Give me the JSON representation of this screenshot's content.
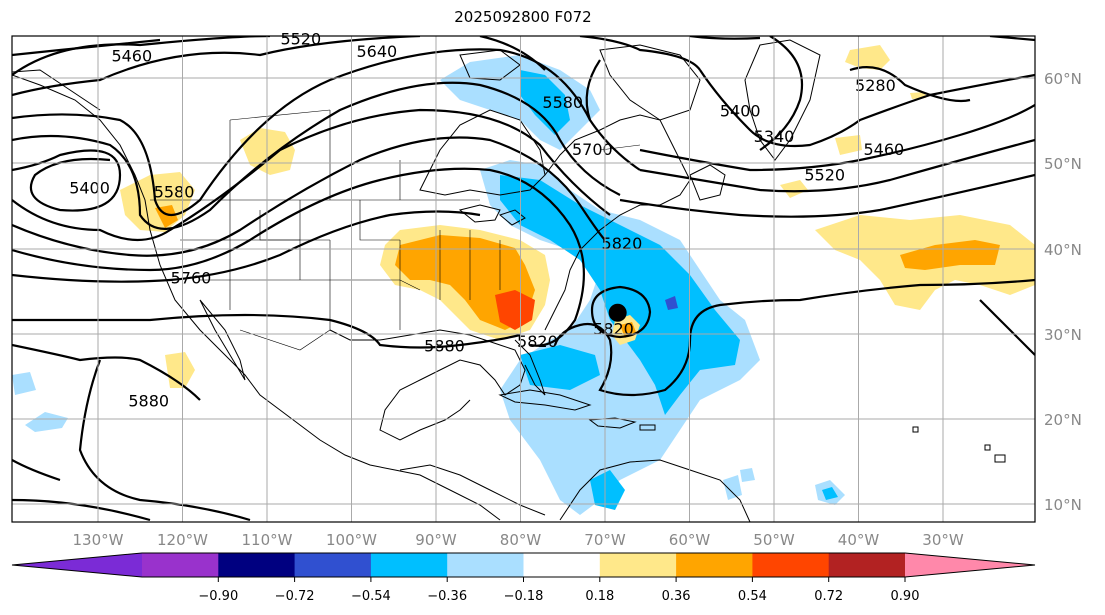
{
  "title": "2025092800 F072",
  "map": {
    "lat_ticks": [
      {
        "value": 60,
        "label": "60°N"
      },
      {
        "value": 50,
        "label": "50°N"
      },
      {
        "value": 40,
        "label": "40°N"
      },
      {
        "value": 30,
        "label": "30°N"
      },
      {
        "value": 20,
        "label": "20°N"
      },
      {
        "value": 10,
        "label": "10°N"
      }
    ],
    "lon_ticks": [
      {
        "value": -130,
        "label": "130°W"
      },
      {
        "value": -120,
        "label": "120°W"
      },
      {
        "value": -110,
        "label": "110°W"
      },
      {
        "value": -100,
        "label": "100°W"
      },
      {
        "value": -90,
        "label": "90°W"
      },
      {
        "value": -80,
        "label": "80°W"
      },
      {
        "value": -70,
        "label": "70°W"
      },
      {
        "value": -60,
        "label": "60°W"
      },
      {
        "value": -50,
        "label": "50°W"
      },
      {
        "value": -40,
        "label": "40°W"
      },
      {
        "value": -30,
        "label": "30°W"
      }
    ],
    "contour_labels": [
      {
        "text": "5460",
        "lon": -126,
        "lat": 62.5
      },
      {
        "text": "5640",
        "lon": -97,
        "lat": 63
      },
      {
        "text": "5520",
        "lon": -106,
        "lat": 64.5
      },
      {
        "text": "5400",
        "lon": -131,
        "lat": 47
      },
      {
        "text": "5580",
        "lon": -121,
        "lat": 46.5
      },
      {
        "text": "5760",
        "lon": -119,
        "lat": 36.5
      },
      {
        "text": "5880",
        "lon": -89,
        "lat": 28.5
      },
      {
        "text": "5880",
        "lon": -124,
        "lat": 22
      },
      {
        "text": "5820",
        "lon": -78,
        "lat": 29
      },
      {
        "text": "5580",
        "lon": -75,
        "lat": 57
      },
      {
        "text": "5700",
        "lon": -71.5,
        "lat": 51.5
      },
      {
        "text": "5820",
        "lon": -68,
        "lat": 40.5
      },
      {
        "text": "5820",
        "lon": -69,
        "lat": 30.5
      },
      {
        "text": "5400",
        "lon": -54,
        "lat": 56
      },
      {
        "text": "5340",
        "lon": -50,
        "lat": 53
      },
      {
        "text": "5280",
        "lon": -38,
        "lat": 59
      },
      {
        "text": "5460",
        "lon": -37,
        "lat": 51.5
      },
      {
        "text": "5520",
        "lon": -44,
        "lat": 48.5
      }
    ],
    "storm_center": {
      "lon": -68.5,
      "lat": 32.5
    }
  },
  "colorbar": {
    "labels": [
      "−0.90",
      "−0.72",
      "−0.54",
      "−0.36",
      "−0.18",
      "0.18",
      "0.36",
      "0.54",
      "0.72",
      "0.90"
    ],
    "colors": [
      "#7b2bd6",
      "#9932cc",
      "#000080",
      "#3050d0",
      "#00bfff",
      "#aadfff",
      "#ffffff",
      "#ffe88a",
      "#ffa500",
      "#ff4500",
      "#b22222",
      "#ff88aa"
    ]
  }
}
